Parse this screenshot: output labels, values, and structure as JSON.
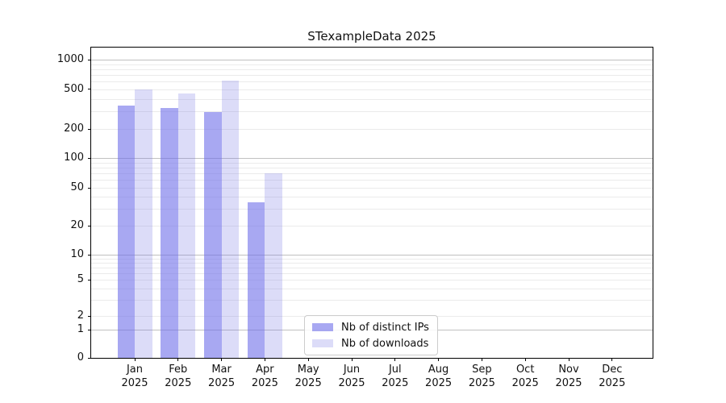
{
  "title": "STexampleData 2025",
  "chart_data": {
    "type": "bar",
    "title": "STexampleData 2025",
    "categories": [
      "Jan",
      "Feb",
      "Mar",
      "Apr",
      "May",
      "Jun",
      "Jul",
      "Aug",
      "Sep",
      "Oct",
      "Nov",
      "Dec"
    ],
    "year_label": "2025",
    "xlabel": "",
    "ylabel": "",
    "y_scale": "symlog",
    "y_ticks": [
      0,
      1,
      2,
      5,
      10,
      20,
      50,
      100,
      200,
      500,
      1000
    ],
    "ylim": [
      0,
      1300
    ],
    "grid": "horizontal major and log-minor gridlines",
    "legend_position": "lower center",
    "series": [
      {
        "name": "Nb of distinct IPs",
        "color": "rgba(110,110,233,0.6)",
        "values": [
          345,
          325,
          295,
          35,
          0,
          0,
          0,
          0,
          0,
          0,
          0,
          0
        ]
      },
      {
        "name": "Nb of downloads",
        "color": "rgba(115,115,227,0.25)",
        "values": [
          500,
          455,
          610,
          70,
          0,
          0,
          0,
          0,
          0,
          0,
          0,
          0
        ]
      }
    ]
  }
}
